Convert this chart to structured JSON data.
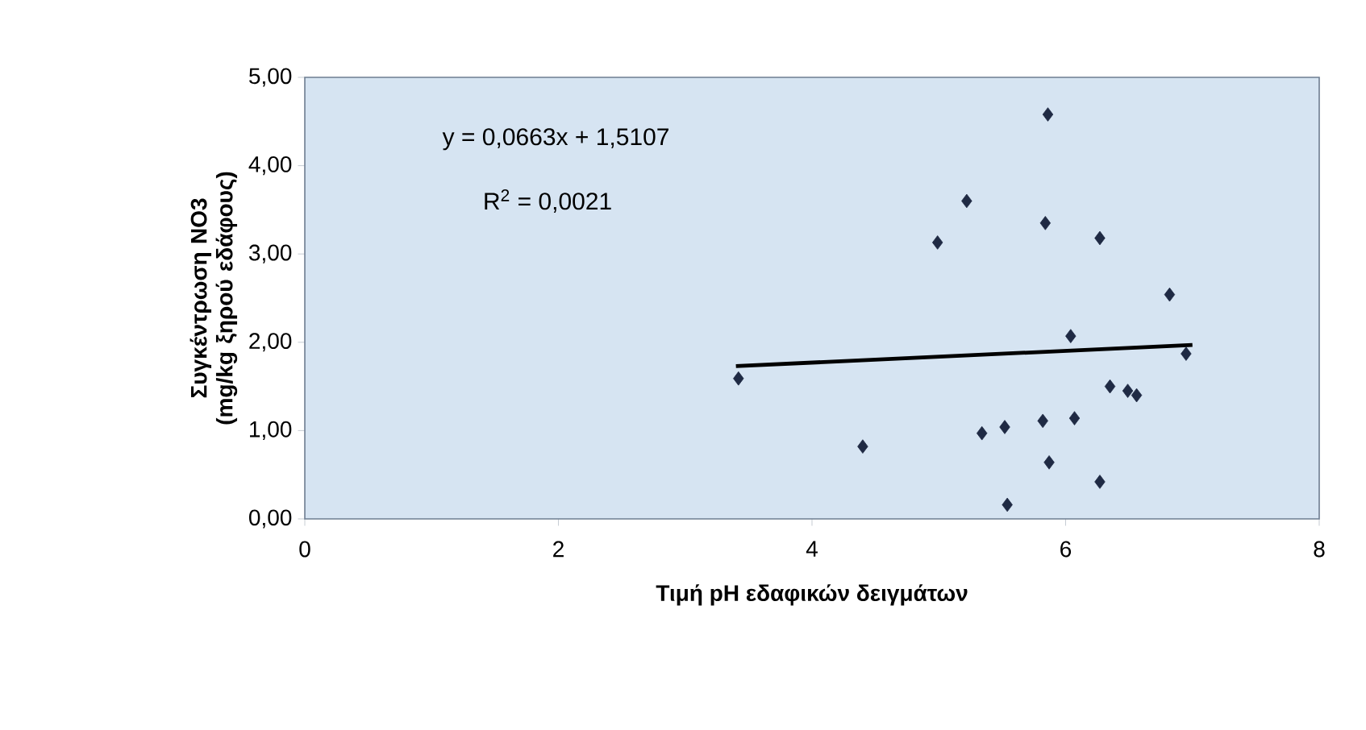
{
  "chart_data": {
    "type": "scatter",
    "xlabel": "Τιμή pH εδαφικών δειγμάτων",
    "ylabel": "Συγκέντρωση NO3 (mg/kg ξηρού εδάφους)",
    "annotations": [
      "y = 0,0663x + 1,5107",
      "R$^{2}$ = 0,0021"
    ],
    "xlim": [
      0,
      8
    ],
    "xticks": [
      0,
      2,
      4,
      6,
      8
    ],
    "ylim": [
      0,
      5
    ],
    "yticks": [
      {
        "value": 0,
        "label": "0,00"
      },
      {
        "value": 1,
        "label": "1,00"
      },
      {
        "value": 2,
        "label": "2,00"
      },
      {
        "value": 3,
        "label": "3,00"
      },
      {
        "value": 4,
        "label": "4,00"
      },
      {
        "value": 5,
        "label": "5,00"
      }
    ],
    "grid": false,
    "series": [
      {
        "marker": "diamond",
        "color": "#1f2a44",
        "x": [
          5.86,
          5.22,
          5.84,
          4.99,
          6.27,
          6.82,
          6.04,
          3.42,
          6.95,
          6.35,
          6.49,
          6.56,
          6.07,
          5.82,
          5.52,
          5.34,
          4.4,
          5.87,
          6.27,
          5.54
        ],
        "values": [
          4.58,
          3.6,
          3.35,
          3.13,
          3.18,
          2.54,
          2.07,
          1.59,
          1.87,
          1.5,
          1.45,
          1.4,
          1.14,
          1.11,
          1.04,
          0.97,
          0.82,
          0.64,
          0.42,
          0.16
        ]
      },
      {
        "type": "line",
        "color": "#000000",
        "line_style": "solid",
        "x": [
          3.4,
          7.0
        ],
        "values": [
          1.73,
          1.97
        ]
      }
    ]
  }
}
